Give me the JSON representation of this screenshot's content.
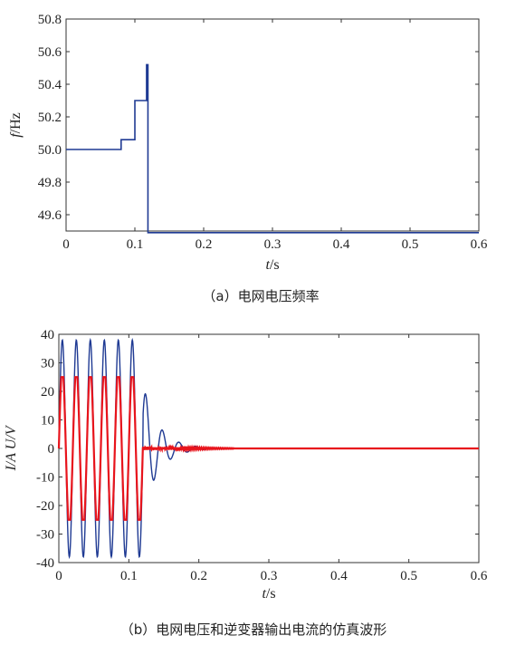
{
  "chart_data": [
    {
      "type": "line",
      "caption": "（a）电网电压频率",
      "xlabel_italic": "t",
      "xlabel_unit": "/s",
      "ylabel_italic": "f",
      "ylabel_unit": "/Hz",
      "xlim": [
        0,
        0.6
      ],
      "ylim": [
        49.5,
        50.8
      ],
      "xticks": [
        "0",
        "0.1",
        "0.2",
        "0.3",
        "0.4",
        "0.5",
        "0.6"
      ],
      "yticks": [
        "50.8",
        "50.6",
        "50.4",
        "50.2",
        "50.0",
        "49.8",
        "49.6"
      ],
      "series": [
        {
          "color": "#1f3a93",
          "x": [
            0,
            0.08,
            0.08,
            0.08,
            0.08,
            0.1,
            0.1,
            0.117,
            0.117,
            0.119,
            0.119,
            0.6
          ],
          "y": [
            50.0,
            50.0,
            50.01,
            50.06,
            50.06,
            50.06,
            50.3,
            50.3,
            50.52,
            50.52,
            49.49,
            49.49
          ]
        }
      ]
    },
    {
      "type": "line",
      "caption": "（b）电网电压和逆变器输出电流的仿真波形",
      "xlabel_italic": "t",
      "xlabel_unit": "/s",
      "ylabel_text": "I/A  U/V",
      "xlim": [
        0,
        0.6
      ],
      "ylim": [
        -40,
        40
      ],
      "xticks": [
        "0",
        "0.1",
        "0.2",
        "0.3",
        "0.4",
        "0.5",
        "0.6"
      ],
      "yticks": [
        "40",
        "30",
        "20",
        "10",
        "0",
        "-10",
        "-20",
        "-30",
        "-40"
      ],
      "series": [
        {
          "color": "#1f3a93",
          "description_points": {
            "steady_amplitude": 38,
            "frequency_hz": 50,
            "fault_time": 0.12,
            "decay": [
              [
                0.13,
                15
              ],
              [
                0.145,
                7
              ],
              [
                0.165,
                3
              ],
              [
                0.18,
                1
              ],
              [
                0.2,
                0.5
              ]
            ]
          }
        },
        {
          "color": "#e8141c",
          "description_points": {
            "steady_amplitude": 25,
            "frequency_hz": 50,
            "stop_time": 0.12
          }
        }
      ]
    }
  ]
}
